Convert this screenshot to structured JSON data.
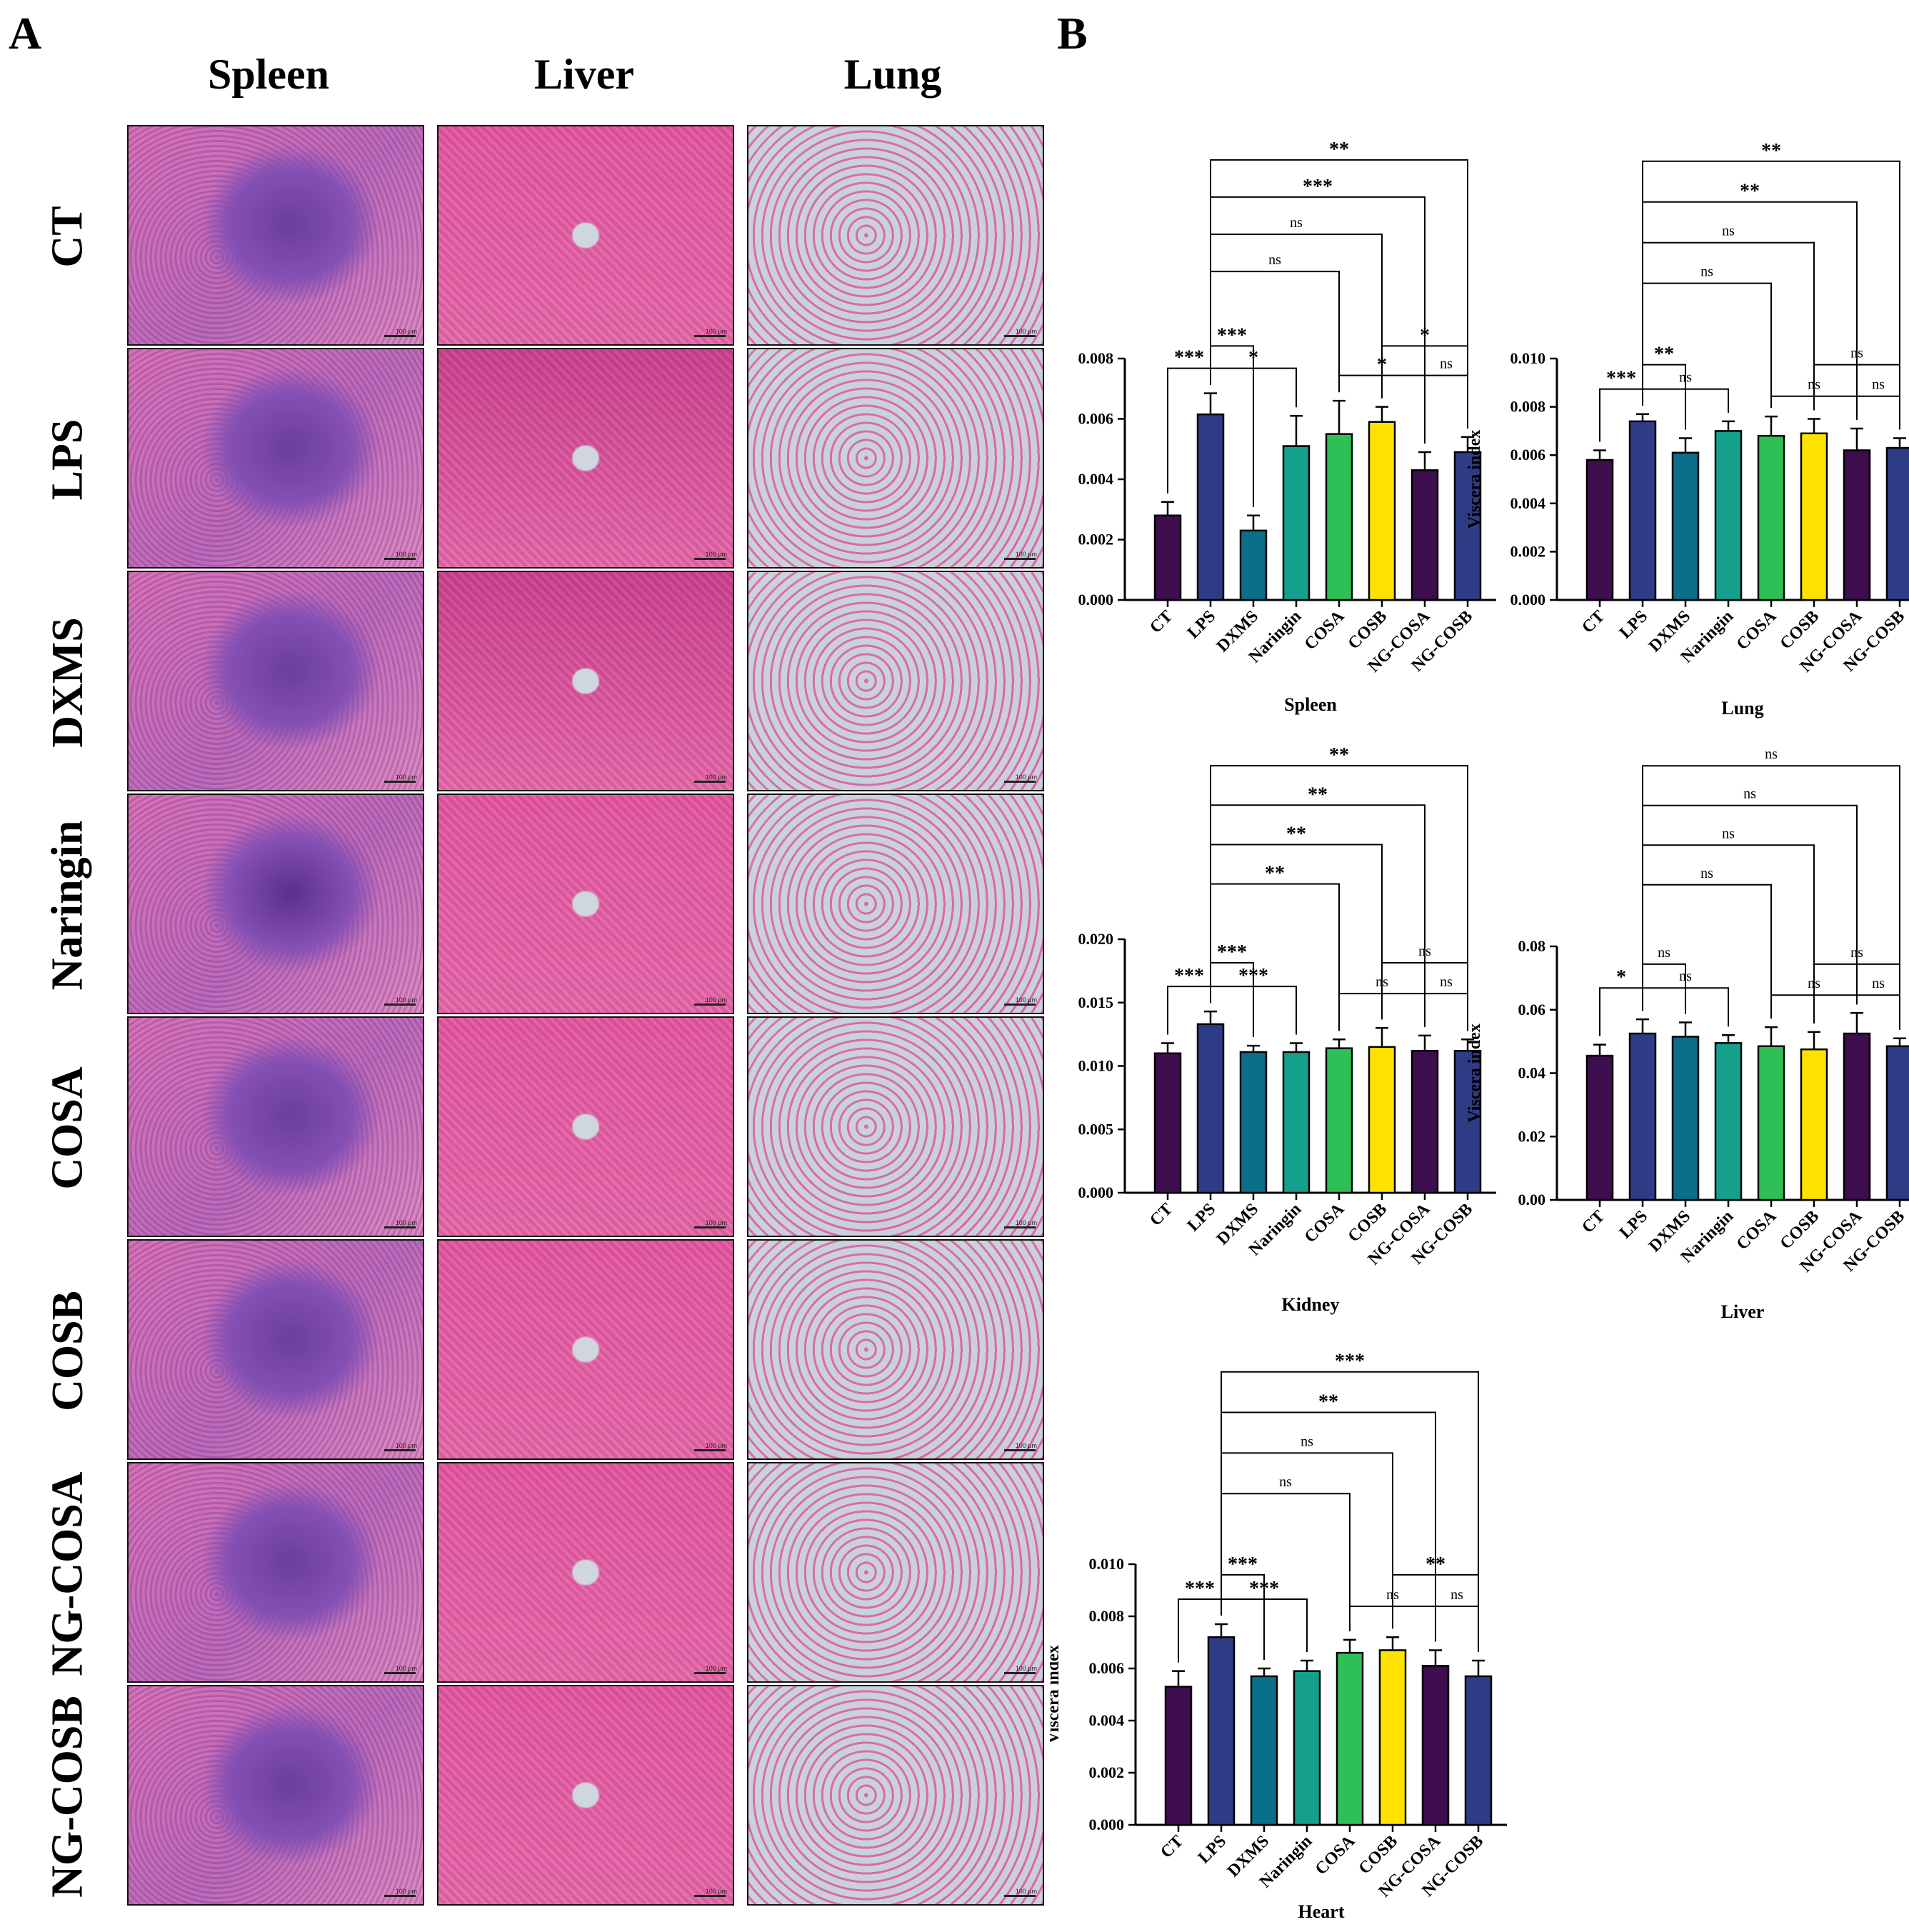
{
  "panelA": {
    "letter": "A",
    "columns": [
      "Spleen",
      "Liver",
      "Lung"
    ],
    "rows": [
      "CT",
      "LPS",
      "DXMS",
      "Naringin",
      "COSA",
      "COSB",
      "NG-COSA",
      "NG-COSB"
    ],
    "scale_label": "100 μm"
  },
  "panelB": {
    "letter": "B"
  },
  "colors": [
    "#3d0d4e",
    "#2e3c85",
    "#0a6f8a",
    "#15a08c",
    "#2fbf57",
    "#ffe300",
    "#3d0d4e",
    "#2e3c85"
  ],
  "chart_data": [
    {
      "type": "bar",
      "title": "Spleen",
      "ylabel": "Viscera index",
      "categories": [
        "CT",
        "LPS",
        "DXMS",
        "Naringin",
        "COSA",
        "COSB",
        "NG-COSA",
        "NG-COSB"
      ],
      "values": [
        0.0028,
        0.00615,
        0.0023,
        0.0051,
        0.0055,
        0.0059,
        0.0043,
        0.0049
      ],
      "errors": [
        0.00045,
        0.0007,
        0.0005,
        0.001,
        0.0011,
        0.0005,
        0.0006,
        0.0005
      ],
      "ylim": [
        0,
        0.008
      ],
      "yticks": [
        "0.000",
        "0.002",
        "0.004",
        "0.006",
        "0.008"
      ],
      "significance": [
        {
          "a": 0,
          "b": 1,
          "label": "***"
        },
        {
          "a": 1,
          "b": 2,
          "label": "***"
        },
        {
          "a": 1,
          "b": 3,
          "label": "*"
        },
        {
          "a": 1,
          "b": 4,
          "label": "ns"
        },
        {
          "a": 1,
          "b": 5,
          "label": "ns"
        },
        {
          "a": 1,
          "b": 6,
          "label": "***"
        },
        {
          "a": 1,
          "b": 7,
          "label": "**"
        },
        {
          "a": 4,
          "b": 6,
          "label": "*"
        },
        {
          "a": 6,
          "b": 7,
          "label": "ns"
        },
        {
          "a": 5,
          "b": 7,
          "label": "*"
        }
      ]
    },
    {
      "type": "bar",
      "title": "Lung",
      "ylabel": "Viscera index",
      "categories": [
        "CT",
        "LPS",
        "DXMS",
        "Naringin",
        "COSA",
        "COSB",
        "NG-COSA",
        "NG-COSB"
      ],
      "values": [
        0.0058,
        0.0074,
        0.0061,
        0.007,
        0.0068,
        0.0069,
        0.0062,
        0.0063
      ],
      "errors": [
        0.0004,
        0.0003,
        0.0006,
        0.0004,
        0.0008,
        0.0006,
        0.0009,
        0.0004
      ],
      "ylim": [
        0,
        0.01
      ],
      "yticks": [
        "0.000",
        "0.002",
        "0.004",
        "0.006",
        "0.008",
        "0.010"
      ],
      "significance": [
        {
          "a": 0,
          "b": 1,
          "label": "***"
        },
        {
          "a": 1,
          "b": 2,
          "label": "**"
        },
        {
          "a": 1,
          "b": 3,
          "label": "ns"
        },
        {
          "a": 1,
          "b": 4,
          "label": "ns"
        },
        {
          "a": 1,
          "b": 5,
          "label": "ns"
        },
        {
          "a": 1,
          "b": 6,
          "label": "**"
        },
        {
          "a": 1,
          "b": 7,
          "label": "**"
        },
        {
          "a": 4,
          "b": 6,
          "label": "ns"
        },
        {
          "a": 6,
          "b": 7,
          "label": "ns"
        },
        {
          "a": 5,
          "b": 7,
          "label": "ns"
        }
      ]
    },
    {
      "type": "bar",
      "title": "Kidney",
      "ylabel": "Viscera index",
      "categories": [
        "CT",
        "LPS",
        "DXMS",
        "Naringin",
        "COSA",
        "COSB",
        "NG-COSA",
        "NG-COSB"
      ],
      "values": [
        0.011,
        0.0133,
        0.0111,
        0.0111,
        0.0114,
        0.0115,
        0.0112,
        0.0112
      ],
      "errors": [
        0.0008,
        0.001,
        0.0005,
        0.0007,
        0.0007,
        0.0015,
        0.0012,
        0.0009
      ],
      "ylim": [
        0,
        0.02
      ],
      "yticks": [
        "0.000",
        "0.005",
        "0.010",
        "0.015",
        "0.020"
      ],
      "significance": [
        {
          "a": 0,
          "b": 1,
          "label": "***"
        },
        {
          "a": 1,
          "b": 2,
          "label": "***"
        },
        {
          "a": 1,
          "b": 3,
          "label": "***"
        },
        {
          "a": 1,
          "b": 4,
          "label": "**"
        },
        {
          "a": 1,
          "b": 5,
          "label": "**"
        },
        {
          "a": 1,
          "b": 6,
          "label": "**"
        },
        {
          "a": 1,
          "b": 7,
          "label": "**"
        },
        {
          "a": 4,
          "b": 6,
          "label": "ns"
        },
        {
          "a": 6,
          "b": 7,
          "label": "ns"
        },
        {
          "a": 5,
          "b": 7,
          "label": "ns"
        }
      ]
    },
    {
      "type": "bar",
      "title": "Liver",
      "ylabel": "Viscera index",
      "categories": [
        "CT",
        "LPS",
        "DXMS",
        "Naringin",
        "COSA",
        "COSB",
        "NG-COSA",
        "NG-COSB"
      ],
      "values": [
        0.0455,
        0.0525,
        0.0515,
        0.0495,
        0.0485,
        0.0475,
        0.0525,
        0.0485
      ],
      "errors": [
        0.0035,
        0.0045,
        0.0045,
        0.0025,
        0.006,
        0.0055,
        0.0065,
        0.0025
      ],
      "ylim": [
        0,
        0.08
      ],
      "yticks": [
        "0.00",
        "0.02",
        "0.04",
        "0.06",
        "0.08"
      ],
      "significance": [
        {
          "a": 0,
          "b": 1,
          "label": "*"
        },
        {
          "a": 1,
          "b": 2,
          "label": "ns"
        },
        {
          "a": 1,
          "b": 3,
          "label": "ns"
        },
        {
          "a": 1,
          "b": 4,
          "label": "ns"
        },
        {
          "a": 1,
          "b": 5,
          "label": "ns"
        },
        {
          "a": 1,
          "b": 6,
          "label": "ns"
        },
        {
          "a": 1,
          "b": 7,
          "label": "ns"
        },
        {
          "a": 4,
          "b": 6,
          "label": "ns"
        },
        {
          "a": 6,
          "b": 7,
          "label": "ns"
        },
        {
          "a": 5,
          "b": 7,
          "label": "ns"
        }
      ]
    },
    {
      "type": "bar",
      "title": "Heart",
      "ylabel": "Viscera index",
      "categories": [
        "CT",
        "LPS",
        "DXMS",
        "Naringin",
        "COSA",
        "COSB",
        "NG-COSA",
        "NG-COSB"
      ],
      "values": [
        0.0053,
        0.0072,
        0.0057,
        0.0059,
        0.0066,
        0.0067,
        0.0061,
        0.0057
      ],
      "errors": [
        0.0006,
        0.0005,
        0.0003,
        0.0004,
        0.0005,
        0.0005,
        0.0006,
        0.0006
      ],
      "ylim": [
        0,
        0.01
      ],
      "yticks": [
        "0.000",
        "0.002",
        "0.004",
        "0.006",
        "0.008",
        "0.010"
      ],
      "significance": [
        {
          "a": 0,
          "b": 1,
          "label": "***"
        },
        {
          "a": 1,
          "b": 2,
          "label": "***"
        },
        {
          "a": 1,
          "b": 3,
          "label": "***"
        },
        {
          "a": 1,
          "b": 4,
          "label": "ns"
        },
        {
          "a": 1,
          "b": 5,
          "label": "ns"
        },
        {
          "a": 1,
          "b": 6,
          "label": "**"
        },
        {
          "a": 1,
          "b": 7,
          "label": "***"
        },
        {
          "a": 4,
          "b": 6,
          "label": "ns"
        },
        {
          "a": 6,
          "b": 7,
          "label": "ns"
        },
        {
          "a": 5,
          "b": 7,
          "label": "**"
        }
      ]
    }
  ]
}
